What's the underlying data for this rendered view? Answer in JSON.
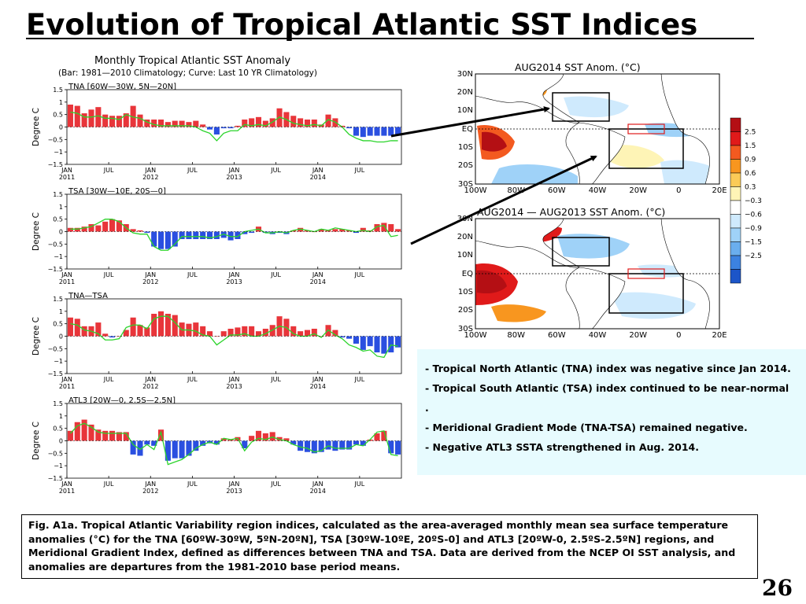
{
  "title": "Evolution of Tropical Atlantic SST Indices",
  "page_number": "26",
  "left_panel": {
    "title": "Monthly Tropical Atlantic SST Anomaly",
    "subtitle": "(Bar: 1981—2010 Climatology; Curve: Last 10 YR Climatology)",
    "bar_color_positive": "#e8353a",
    "bar_color_negative": "#2a4fe0",
    "curve_color": "#2bd42b"
  },
  "chart_data": [
    {
      "type": "bar",
      "title": "TNA [60W—30W, 5N—20N]",
      "ylabel": "Degree C",
      "ylim": [
        -1.5,
        1.5
      ],
      "yticks": [
        "1.5",
        "1",
        "0.5",
        "0",
        "−0.5",
        "−1",
        "−1.5"
      ],
      "xticks": [
        {
          "month": 0,
          "label1": "JAN",
          "label2": "2011"
        },
        {
          "month": 6,
          "label1": "JUL",
          "label2": ""
        },
        {
          "month": 12,
          "label1": "JAN",
          "label2": "2012"
        },
        {
          "month": 18,
          "label1": "JUL",
          "label2": ""
        },
        {
          "month": 24,
          "label1": "JAN",
          "label2": "2013"
        },
        {
          "month": 30,
          "label1": "JUL",
          "label2": ""
        },
        {
          "month": 36,
          "label1": "JAN",
          "label2": "2014"
        },
        {
          "month": 42,
          "label1": "JUL",
          "label2": ""
        }
      ],
      "bars": [
        0.9,
        0.85,
        0.55,
        0.7,
        0.8,
        0.5,
        0.45,
        0.45,
        0.55,
        0.85,
        0.5,
        0.3,
        0.3,
        0.3,
        0.2,
        0.25,
        0.25,
        0.2,
        0.25,
        0.1,
        -0.1,
        -0.3,
        -0.05,
        -0.05,
        0.05,
        0.3,
        0.35,
        0.4,
        0.25,
        0.35,
        0.75,
        0.6,
        0.45,
        0.35,
        0.3,
        0.3,
        0.1,
        0.5,
        0.35,
        0.05,
        -0.05,
        -0.35,
        -0.4,
        -0.35,
        -0.35,
        -0.35,
        -0.35,
        -0.35
      ],
      "curve": [
        0.6,
        0.55,
        0.4,
        0.4,
        0.45,
        0.35,
        0.35,
        0.3,
        0.5,
        0.4,
        0.35,
        0.2,
        0.1,
        0.05,
        0.05,
        0.05,
        0.05,
        0.05,
        0.0,
        -0.15,
        -0.25,
        -0.55,
        -0.25,
        -0.15,
        -0.15,
        0.1,
        0.05,
        0.1,
        0.05,
        0.2,
        0.4,
        0.3,
        0.15,
        0.1,
        0.05,
        0.1,
        0.05,
        0.3,
        0.2,
        0.0,
        -0.3,
        -0.45,
        -0.55,
        -0.55,
        -0.6,
        -0.6,
        -0.55,
        -0.55
      ]
    },
    {
      "type": "bar",
      "title": "TSA [30W—10E, 20S—0]",
      "ylabel": "Degree C",
      "ylim": [
        -1.5,
        1.5
      ],
      "yticks": [
        "1.5",
        "1",
        "0.5",
        "0",
        "−0.5",
        "−1",
        "−1.5"
      ],
      "xticks": [
        {
          "month": 0,
          "label1": "JAN",
          "label2": "2011"
        },
        {
          "month": 6,
          "label1": "JUL",
          "label2": ""
        },
        {
          "month": 12,
          "label1": "JAN",
          "label2": "2012"
        },
        {
          "month": 18,
          "label1": "JUL",
          "label2": ""
        },
        {
          "month": 24,
          "label1": "JAN",
          "label2": "2013"
        },
        {
          "month": 30,
          "label1": "JUL",
          "label2": ""
        },
        {
          "month": 36,
          "label1": "JAN",
          "label2": "2014"
        },
        {
          "month": 42,
          "label1": "JUL",
          "label2": ""
        }
      ],
      "bars": [
        0.15,
        0.15,
        0.2,
        0.3,
        0.25,
        0.4,
        0.5,
        0.45,
        0.3,
        0.1,
        0.05,
        -0.05,
        -0.6,
        -0.7,
        -0.7,
        -0.6,
        -0.3,
        -0.3,
        -0.3,
        -0.3,
        -0.3,
        -0.3,
        -0.25,
        -0.35,
        -0.3,
        -0.1,
        -0.05,
        0.2,
        -0.05,
        -0.1,
        -0.05,
        -0.1,
        0.05,
        0.15,
        0.05,
        0.0,
        0.1,
        0.05,
        0.1,
        0.1,
        0.05,
        -0.05,
        0.15,
        0.05,
        0.3,
        0.35,
        0.3,
        0.1
      ],
      "curve": [
        0.1,
        0.1,
        0.15,
        0.2,
        0.35,
        0.5,
        0.5,
        0.4,
        0.15,
        -0.05,
        -0.1,
        -0.1,
        -0.6,
        -0.75,
        -0.75,
        -0.5,
        -0.2,
        -0.2,
        -0.2,
        -0.2,
        -0.25,
        -0.2,
        -0.1,
        -0.2,
        -0.2,
        0.0,
        0.05,
        0.1,
        -0.05,
        -0.05,
        0.0,
        -0.05,
        0.05,
        0.1,
        0.05,
        0.0,
        0.1,
        0.05,
        0.15,
        0.1,
        0.05,
        0.0,
        0.05,
        0.0,
        0.2,
        0.25,
        -0.2,
        -0.15
      ]
    },
    {
      "type": "bar",
      "title": "TNA—TSA",
      "ylabel": "Degree C",
      "ylim": [
        -1.5,
        1.5
      ],
      "yticks": [
        "1.5",
        "1",
        "0.5",
        "0",
        "−0.5",
        "−1",
        "−1.5"
      ],
      "xticks": [
        {
          "month": 0,
          "label1": "JAN",
          "label2": "2011"
        },
        {
          "month": 6,
          "label1": "JUL",
          "label2": ""
        },
        {
          "month": 12,
          "label1": "JAN",
          "label2": "2012"
        },
        {
          "month": 18,
          "label1": "JUL",
          "label2": ""
        },
        {
          "month": 24,
          "label1": "JAN",
          "label2": "2013"
        },
        {
          "month": 30,
          "label1": "JUL",
          "label2": ""
        },
        {
          "month": 36,
          "label1": "JAN",
          "label2": "2014"
        },
        {
          "month": 42,
          "label1": "JUL",
          "label2": ""
        }
      ],
      "bars": [
        0.75,
        0.7,
        0.4,
        0.4,
        0.55,
        0.1,
        -0.05,
        0.0,
        0.25,
        0.75,
        0.45,
        0.35,
        0.9,
        1.0,
        0.9,
        0.85,
        0.55,
        0.5,
        0.55,
        0.4,
        0.2,
        0.0,
        0.2,
        0.3,
        0.35,
        0.4,
        0.4,
        0.2,
        0.3,
        0.45,
        0.8,
        0.7,
        0.4,
        0.2,
        0.25,
        0.3,
        0.0,
        0.45,
        0.25,
        -0.05,
        -0.1,
        -0.3,
        -0.55,
        -0.4,
        -0.65,
        -0.7,
        -0.65,
        -0.45
      ],
      "curve": [
        0.5,
        0.45,
        0.25,
        0.2,
        0.1,
        -0.15,
        -0.15,
        -0.1,
        0.35,
        0.45,
        0.45,
        0.3,
        0.7,
        0.8,
        0.8,
        0.55,
        0.25,
        0.25,
        0.2,
        0.05,
        0.0,
        -0.35,
        -0.15,
        0.05,
        0.05,
        0.1,
        0.0,
        0.0,
        0.1,
        0.25,
        0.4,
        0.35,
        0.1,
        0.0,
        0.0,
        0.1,
        -0.05,
        0.25,
        0.05,
        -0.1,
        -0.35,
        -0.45,
        -0.6,
        -0.55,
        -0.8,
        -0.85,
        -0.35,
        -0.4
      ]
    },
    {
      "type": "bar",
      "title": "ATL3 [20W—0, 2.5S—2.5N]",
      "ylabel": "Degree C",
      "ylim": [
        -1.5,
        1.5
      ],
      "yticks": [
        "1.5",
        "1",
        "0.5",
        "0",
        "−0.5",
        "−1",
        "−1.5"
      ],
      "xticks": [
        {
          "month": 0,
          "label1": "JAN",
          "label2": "2011"
        },
        {
          "month": 6,
          "label1": "JUL",
          "label2": ""
        },
        {
          "month": 12,
          "label1": "JAN",
          "label2": "2012"
        },
        {
          "month": 18,
          "label1": "JUL",
          "label2": ""
        },
        {
          "month": 24,
          "label1": "JAN",
          "label2": "2013"
        },
        {
          "month": 30,
          "label1": "JUL",
          "label2": ""
        },
        {
          "month": 36,
          "label1": "JAN",
          "label2": "2014"
        },
        {
          "month": 42,
          "label1": "JUL",
          "label2": ""
        }
      ],
      "bars": [
        0.4,
        0.75,
        0.85,
        0.65,
        0.45,
        0.4,
        0.4,
        0.35,
        0.35,
        -0.55,
        -0.6,
        -0.15,
        -0.2,
        0.45,
        -0.8,
        -0.7,
        -0.7,
        -0.6,
        -0.4,
        -0.2,
        -0.1,
        -0.15,
        0.1,
        0.05,
        0.15,
        -0.3,
        0.2,
        0.4,
        0.3,
        0.35,
        0.15,
        0.1,
        -0.15,
        -0.4,
        -0.45,
        -0.5,
        -0.45,
        -0.35,
        -0.4,
        -0.35,
        -0.35,
        -0.15,
        -0.2,
        0.05,
        0.3,
        0.4,
        -0.5,
        -0.55
      ],
      "curve": [
        0.3,
        0.6,
        0.7,
        0.55,
        0.35,
        0.3,
        0.3,
        0.3,
        0.3,
        -0.15,
        -0.35,
        -0.15,
        -0.35,
        0.35,
        -0.95,
        -0.85,
        -0.75,
        -0.55,
        -0.3,
        -0.15,
        -0.05,
        -0.15,
        0.1,
        0.05,
        0.1,
        -0.4,
        -0.05,
        0.1,
        0.05,
        0.15,
        0.05,
        0.0,
        -0.15,
        -0.25,
        -0.3,
        -0.45,
        -0.4,
        -0.2,
        -0.3,
        -0.3,
        -0.3,
        -0.15,
        -0.2,
        0.05,
        0.35,
        0.4,
        -0.55,
        -0.6
      ]
    }
  ],
  "maps": [
    {
      "title": "AUG2014 SST Anom. (°C)"
    },
    {
      "title": "AUG2014 — AUG2013 SST Anom. (°C)"
    }
  ],
  "map_axes": {
    "lat_labels": [
      "30N",
      "20N",
      "10N",
      "EQ",
      "10S",
      "20S",
      "30S"
    ],
    "lon_labels": [
      "100W",
      "80W",
      "60W",
      "40W",
      "20W",
      "0",
      "20E"
    ]
  },
  "colorbar": {
    "labels": [
      "2.5",
      "1.5",
      "0.9",
      "0.6",
      "0.3",
      "−0.3",
      "−0.6",
      "−0.9",
      "−1.5",
      "−2.5"
    ],
    "colors": [
      "#b40f14",
      "#e01a1a",
      "#f35a20",
      "#f8961f",
      "#fbcb57",
      "#fef4b6",
      "#ffffff",
      "#cfeafd",
      "#9fd2f8",
      "#6aaeee",
      "#3c82e0",
      "#1c55c8"
    ]
  },
  "bullets": [
    {
      "dash": "- ",
      "text": "Tropical North Atlantic (TNA) index was negative since Jan 2014."
    },
    {
      "dash": "- ",
      "text": "Tropical South Atlantic (TSA) index continued to be near-normal ."
    },
    {
      "dash": "- ",
      "text": "Meridional Gradient Mode (TNA-TSA) remained negative."
    },
    {
      "dash": "- ",
      "text": "Negative ATL3 SSTA strengthened in Aug. 2014."
    }
  ],
  "caption": "Fig. A1a. Tropical Atlantic Variability region indices, calculated as the area-averaged monthly mean sea surface temperature anomalies (°C) for the TNA [60ºW-30ºW, 5ºN-20ºN], TSA [30ºW-10ºE, 20ºS-0] and ATL3 [20ºW-0, 2.5ºS-2.5ºN] regions, and Meridional Gradient Index, defined as differences between TNA and TSA. Data are derived from the NCEP OI SST analysis, and anomalies are departures from the 1981-2010 base period means."
}
